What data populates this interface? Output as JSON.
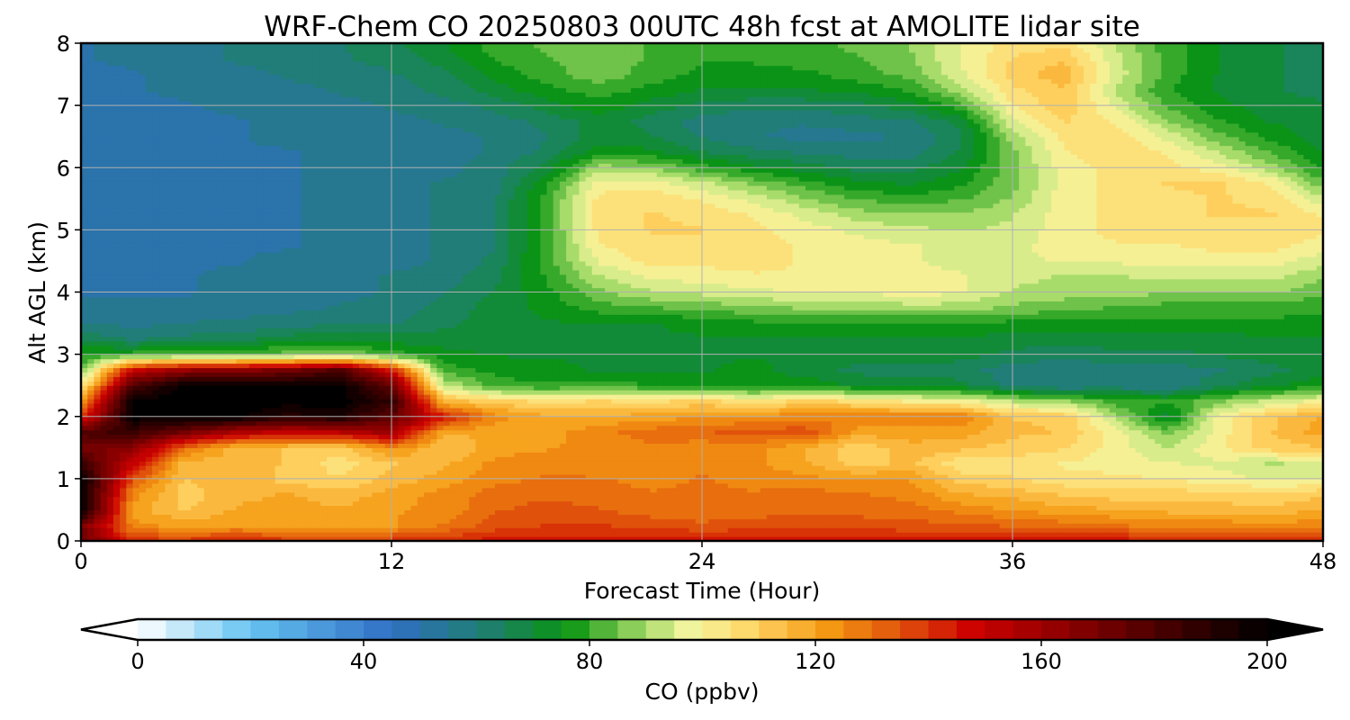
{
  "chart_data": {
    "type": "heatmap",
    "subtype": "filled-contour",
    "title": "WRF-Chem CO  20250803 00UTC 48h fcst at AMOLITE lidar site",
    "xlabel": "Forecast Time (Hour)",
    "ylabel": "Alt AGL (km)",
    "xlim": [
      0,
      48
    ],
    "ylim": [
      0,
      8
    ],
    "x_ticks": [
      "0",
      "12",
      "24",
      "36",
      "48"
    ],
    "y_ticks": [
      "0",
      "1",
      "2",
      "3",
      "4",
      "5",
      "6",
      "7",
      "8"
    ],
    "grid": true,
    "colorbar": {
      "label": "CO  (ppbv)",
      "orientation": "horizontal",
      "extend": "both",
      "range": [
        0,
        200
      ],
      "ticks": [
        "0",
        "40",
        "80",
        "120",
        "160",
        "200"
      ],
      "stops": [
        {
          "value": 0,
          "color": "#ffffff"
        },
        {
          "value": 20,
          "color": "#66c4f2"
        },
        {
          "value": 45,
          "color": "#2f6ec4"
        },
        {
          "value": 62,
          "color": "#1f7f6e"
        },
        {
          "value": 76,
          "color": "#089410"
        },
        {
          "value": 90,
          "color": "#a8dc6a"
        },
        {
          "value": 98,
          "color": "#f4f6a0"
        },
        {
          "value": 108,
          "color": "#ffd86a"
        },
        {
          "value": 122,
          "color": "#f59a12"
        },
        {
          "value": 135,
          "color": "#e0520c"
        },
        {
          "value": 148,
          "color": "#cc0000"
        },
        {
          "value": 165,
          "color": "#8a0000"
        },
        {
          "value": 185,
          "color": "#3a0000"
        },
        {
          "value": 200,
          "color": "#000000"
        }
      ]
    },
    "x": [
      0,
      2,
      4,
      6,
      8,
      10,
      12,
      14,
      16,
      18,
      20,
      22,
      24,
      26,
      28,
      30,
      32,
      34,
      36,
      38,
      40,
      42,
      44,
      46,
      48
    ],
    "y": [
      0,
      0.25,
      0.5,
      0.75,
      1,
      1.25,
      1.5,
      1.75,
      2,
      2.25,
      2.5,
      2.75,
      3,
      3.25,
      3.5,
      3.75,
      4,
      4.25,
      4.5,
      4.75,
      5,
      5.25,
      5.5,
      5.75,
      6,
      6.25,
      6.5,
      6.75,
      7,
      7.25,
      7.5,
      7.75,
      8
    ],
    "z_description": "CO mixing ratio (ppbv) by altitude (rows, y) and forecast hour (cols, x)",
    "z": [
      [
        175,
        140,
        140,
        142,
        140,
        138,
        140,
        142,
        145,
        145,
        145,
        145,
        145,
        145,
        145,
        145,
        145,
        145,
        145,
        145,
        145,
        145,
        145,
        145,
        145
      ],
      [
        170,
        125,
        120,
        122,
        120,
        118,
        122,
        128,
        135,
        138,
        138,
        136,
        134,
        135,
        136,
        136,
        134,
        134,
        132,
        130,
        128,
        126,
        126,
        124,
        126
      ],
      [
        200,
        120,
        112,
        118,
        120,
        118,
        122,
        124,
        132,
        134,
        133,
        130,
        128,
        130,
        132,
        130,
        130,
        126,
        122,
        120,
        118,
        116,
        115,
        114,
        118
      ],
      [
        200,
        125,
        110,
        116,
        118,
        114,
        120,
        124,
        130,
        132,
        130,
        128,
        128,
        128,
        130,
        128,
        126,
        118,
        116,
        112,
        110,
        110,
        110,
        108,
        112
      ],
      [
        200,
        135,
        112,
        118,
        110,
        108,
        114,
        120,
        126,
        128,
        128,
        126,
        128,
        126,
        124,
        122,
        122,
        110,
        108,
        104,
        104,
        102,
        100,
        96,
        98
      ],
      [
        185,
        150,
        115,
        115,
        112,
        105,
        112,
        116,
        124,
        126,
        124,
        124,
        126,
        124,
        118,
        110,
        114,
        104,
        106,
        102,
        100,
        98,
        96,
        92,
        94
      ],
      [
        170,
        165,
        130,
        115,
        112,
        110,
        125,
        112,
        120,
        122,
        124,
        126,
        124,
        124,
        118,
        108,
        116,
        114,
        110,
        108,
        100,
        92,
        102,
        110,
        112
      ],
      [
        180,
        185,
        170,
        155,
        150,
        152,
        160,
        118,
        118,
        120,
        126,
        130,
        132,
        134,
        136,
        120,
        120,
        120,
        114,
        112,
        100,
        86,
        100,
        112,
        120
      ],
      [
        140,
        200,
        200,
        200,
        190,
        195,
        175,
        145,
        125,
        118,
        118,
        120,
        122,
        124,
        126,
        128,
        128,
        128,
        112,
        112,
        90,
        70,
        100,
        112,
        118
      ],
      [
        120,
        200,
        200,
        200,
        200,
        200,
        188,
        115,
        110,
        106,
        108,
        106,
        110,
        104,
        110,
        106,
        102,
        100,
        92,
        88,
        80,
        78,
        86,
        94,
        100
      ],
      [
        100,
        180,
        200,
        200,
        200,
        200,
        175,
        94,
        80,
        78,
        80,
        78,
        76,
        74,
        76,
        72,
        70,
        70,
        60,
        58,
        60,
        58,
        66,
        72,
        76
      ],
      [
        84,
        150,
        162,
        165,
        170,
        180,
        145,
        80,
        76,
        74,
        72,
        72,
        72,
        74,
        70,
        66,
        65,
        64,
        60,
        58,
        60,
        60,
        62,
        66,
        70
      ],
      [
        78,
        80,
        82,
        82,
        85,
        88,
        80,
        74,
        72,
        72,
        72,
        72,
        72,
        72,
        72,
        70,
        70,
        70,
        66,
        64,
        66,
        66,
        68,
        70,
        72
      ],
      [
        66,
        62,
        64,
        66,
        70,
        72,
        70,
        70,
        72,
        72,
        72,
        72,
        72,
        72,
        72,
        72,
        72,
        72,
        70,
        70,
        70,
        70,
        70,
        72,
        72
      ],
      [
        58,
        56,
        58,
        58,
        60,
        62,
        62,
        66,
        70,
        72,
        72,
        72,
        74,
        76,
        78,
        76,
        76,
        76,
        76,
        76,
        76,
        76,
        76,
        76,
        76
      ],
      [
        54,
        54,
        54,
        56,
        56,
        58,
        60,
        64,
        70,
        74,
        80,
        82,
        84,
        86,
        88,
        88,
        90,
        90,
        86,
        84,
        82,
        80,
        80,
        80,
        78
      ],
      [
        52,
        52,
        52,
        54,
        54,
        56,
        58,
        62,
        68,
        76,
        86,
        92,
        94,
        96,
        98,
        98,
        100,
        98,
        92,
        90,
        90,
        88,
        88,
        88,
        84
      ],
      [
        52,
        52,
        52,
        54,
        54,
        56,
        58,
        60,
        66,
        78,
        92,
        98,
        100,
        102,
        102,
        100,
        100,
        98,
        94,
        92,
        92,
        94,
        94,
        94,
        88
      ],
      [
        52,
        52,
        52,
        52,
        54,
        54,
        56,
        58,
        64,
        80,
        98,
        104,
        104,
        104,
        102,
        100,
        98,
        96,
        96,
        98,
        98,
        100,
        100,
        100,
        94
      ],
      [
        52,
        52,
        52,
        52,
        52,
        54,
        56,
        58,
        62,
        80,
        102,
        106,
        106,
        104,
        102,
        100,
        98,
        96,
        96,
        100,
        102,
        102,
        104,
        104,
        100
      ],
      [
        50,
        50,
        52,
        52,
        52,
        54,
        56,
        58,
        62,
        80,
        104,
        108,
        108,
        104,
        100,
        96,
        94,
        92,
        94,
        100,
        104,
        106,
        106,
        106,
        104
      ],
      [
        50,
        50,
        50,
        52,
        52,
        54,
        56,
        58,
        62,
        80,
        104,
        108,
        106,
        102,
        96,
        90,
        88,
        88,
        92,
        100,
        104,
        106,
        108,
        108,
        102
      ],
      [
        50,
        50,
        50,
        52,
        52,
        54,
        56,
        58,
        62,
        80,
        104,
        106,
        102,
        96,
        88,
        82,
        80,
        82,
        88,
        100,
        104,
        106,
        108,
        106,
        94
      ],
      [
        50,
        50,
        50,
        52,
        52,
        54,
        56,
        58,
        60,
        76,
        100,
        100,
        94,
        86,
        80,
        74,
        72,
        76,
        86,
        100,
        104,
        108,
        108,
        102,
        84
      ],
      [
        48,
        48,
        50,
        52,
        52,
        54,
        56,
        56,
        60,
        70,
        90,
        88,
        80,
        74,
        70,
        66,
        66,
        72,
        86,
        100,
        104,
        104,
        100,
        90,
        76
      ],
      [
        48,
        48,
        50,
        52,
        52,
        54,
        56,
        56,
        58,
        64,
        76,
        74,
        68,
        64,
        62,
        60,
        60,
        68,
        86,
        102,
        106,
        102,
        92,
        82,
        72
      ],
      [
        48,
        48,
        50,
        52,
        54,
        54,
        56,
        56,
        58,
        62,
        70,
        68,
        62,
        58,
        56,
        56,
        58,
        66,
        90,
        104,
        106,
        96,
        84,
        76,
        70
      ],
      [
        48,
        50,
        50,
        52,
        54,
        56,
        56,
        58,
        60,
        64,
        70,
        66,
        60,
        58,
        58,
        60,
        62,
        70,
        96,
        108,
        102,
        88,
        78,
        72,
        70
      ],
      [
        48,
        50,
        52,
        54,
        56,
        56,
        58,
        60,
        64,
        70,
        76,
        70,
        66,
        64,
        64,
        66,
        70,
        80,
        102,
        112,
        96,
        82,
        74,
        70,
        68
      ],
      [
        50,
        52,
        54,
        56,
        56,
        58,
        60,
        64,
        70,
        76,
        80,
        76,
        72,
        72,
        72,
        74,
        78,
        90,
        106,
        112,
        92,
        78,
        72,
        68,
        66
      ],
      [
        50,
        52,
        54,
        56,
        58,
        60,
        62,
        66,
        74,
        80,
        86,
        80,
        76,
        76,
        76,
        80,
        84,
        96,
        110,
        116,
        96,
        80,
        72,
        68,
        66
      ],
      [
        52,
        54,
        56,
        58,
        60,
        62,
        64,
        70,
        78,
        82,
        86,
        82,
        78,
        78,
        80,
        82,
        86,
        98,
        108,
        112,
        94,
        80,
        72,
        68,
        66
      ],
      [
        52,
        54,
        56,
        58,
        60,
        62,
        66,
        72,
        80,
        84,
        86,
        82,
        78,
        78,
        80,
        84,
        88,
        98,
        104,
        106,
        92,
        80,
        72,
        68,
        66
      ]
    ]
  }
}
